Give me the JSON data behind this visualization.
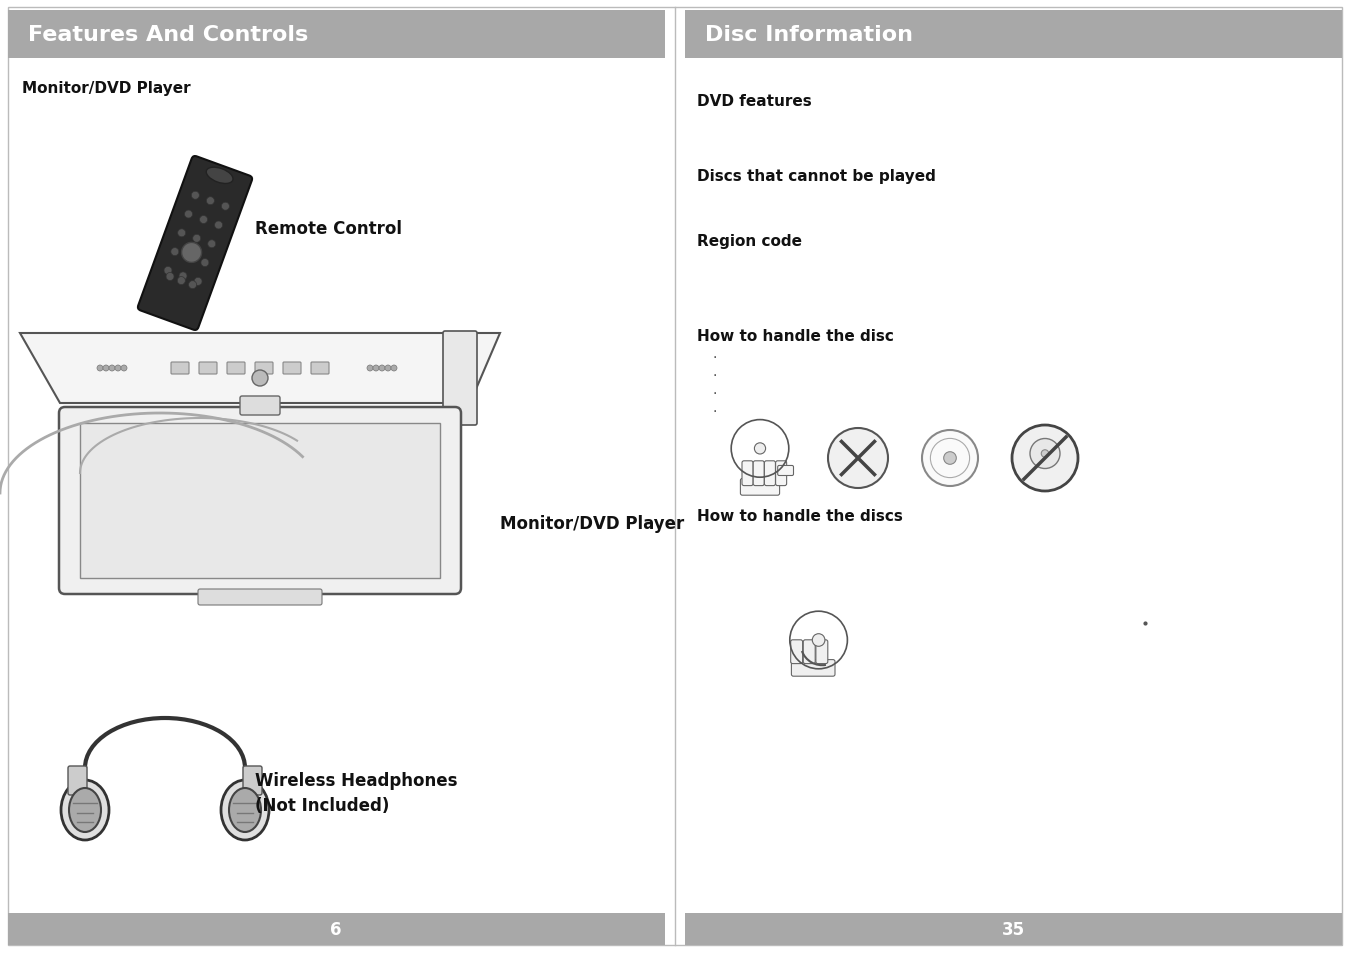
{
  "left_title": "Features And Controls",
  "right_title": "Disc Information",
  "left_page": "6",
  "right_page": "35",
  "header_bg": "#a8a8a8",
  "header_text_color": "#ffffff",
  "footer_bg": "#a8a8a8",
  "footer_text_color": "#ffffff",
  "page_bg": "#ffffff",
  "border_color": "#bbbbbb",
  "left_subtitle": "Monitor/DVD Player",
  "label_remote": "Remote Control",
  "label_monitor": "Monitor/DVD Player",
  "label_headphones": "Wireless Headphones\n(Not Included)",
  "right_items": [
    "DVD features",
    "Discs that cannot be played",
    "Region code",
    "How to handle the disc",
    "How to handle the discs"
  ]
}
